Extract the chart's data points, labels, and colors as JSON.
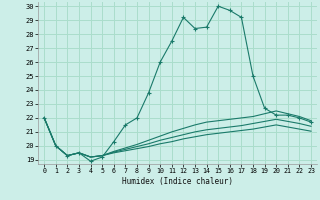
{
  "xlabel": "Humidex (Indice chaleur)",
  "bg_color": "#cceee8",
  "grid_color": "#aaddcc",
  "line_color": "#1a7a6a",
  "xlim": [
    -0.5,
    23.5
  ],
  "ylim": [
    18.7,
    30.3
  ],
  "yticks": [
    19,
    20,
    21,
    22,
    23,
    24,
    25,
    26,
    27,
    28,
    29,
    30
  ],
  "xticks": [
    0,
    1,
    2,
    3,
    4,
    5,
    6,
    7,
    8,
    9,
    10,
    11,
    12,
    13,
    14,
    15,
    16,
    17,
    18,
    19,
    20,
    21,
    22,
    23
  ],
  "series1_x": [
    0,
    1,
    2,
    3,
    4,
    5,
    6,
    7,
    8,
    9,
    10,
    11,
    12,
    13,
    14,
    15,
    16,
    17,
    18,
    19,
    20,
    21,
    22,
    23
  ],
  "series1_y": [
    22.0,
    20.0,
    19.3,
    19.5,
    18.9,
    19.2,
    20.3,
    21.5,
    22.0,
    23.8,
    26.0,
    27.5,
    29.2,
    28.4,
    28.5,
    30.0,
    29.7,
    29.2,
    25.0,
    22.7,
    22.2,
    22.2,
    22.0,
    21.7
  ],
  "series2_x": [
    0,
    1,
    2,
    3,
    4,
    5,
    6,
    7,
    8,
    9,
    10,
    11,
    12,
    13,
    14,
    15,
    16,
    17,
    18,
    19,
    20,
    21,
    22,
    23
  ],
  "series2_y": [
    22.0,
    20.0,
    19.3,
    19.5,
    19.2,
    19.3,
    19.6,
    19.85,
    20.1,
    20.4,
    20.7,
    21.0,
    21.25,
    21.5,
    21.7,
    21.8,
    21.9,
    22.0,
    22.1,
    22.3,
    22.5,
    22.3,
    22.1,
    21.8
  ],
  "series3_x": [
    0,
    1,
    2,
    3,
    4,
    5,
    6,
    7,
    8,
    9,
    10,
    11,
    12,
    13,
    14,
    15,
    16,
    17,
    18,
    19,
    20,
    21,
    22,
    23
  ],
  "series3_y": [
    22.0,
    20.0,
    19.3,
    19.5,
    19.2,
    19.3,
    19.55,
    19.75,
    19.95,
    20.15,
    20.4,
    20.6,
    20.8,
    21.0,
    21.15,
    21.25,
    21.35,
    21.45,
    21.6,
    21.75,
    21.9,
    21.75,
    21.6,
    21.4
  ],
  "series4_x": [
    0,
    1,
    2,
    3,
    4,
    5,
    6,
    7,
    8,
    9,
    10,
    11,
    12,
    13,
    14,
    15,
    16,
    17,
    18,
    19,
    20,
    21,
    22,
    23
  ],
  "series4_y": [
    22.0,
    20.0,
    19.3,
    19.5,
    19.2,
    19.3,
    19.5,
    19.65,
    19.8,
    19.95,
    20.15,
    20.3,
    20.5,
    20.65,
    20.8,
    20.9,
    21.0,
    21.1,
    21.2,
    21.35,
    21.5,
    21.35,
    21.2,
    21.05
  ]
}
